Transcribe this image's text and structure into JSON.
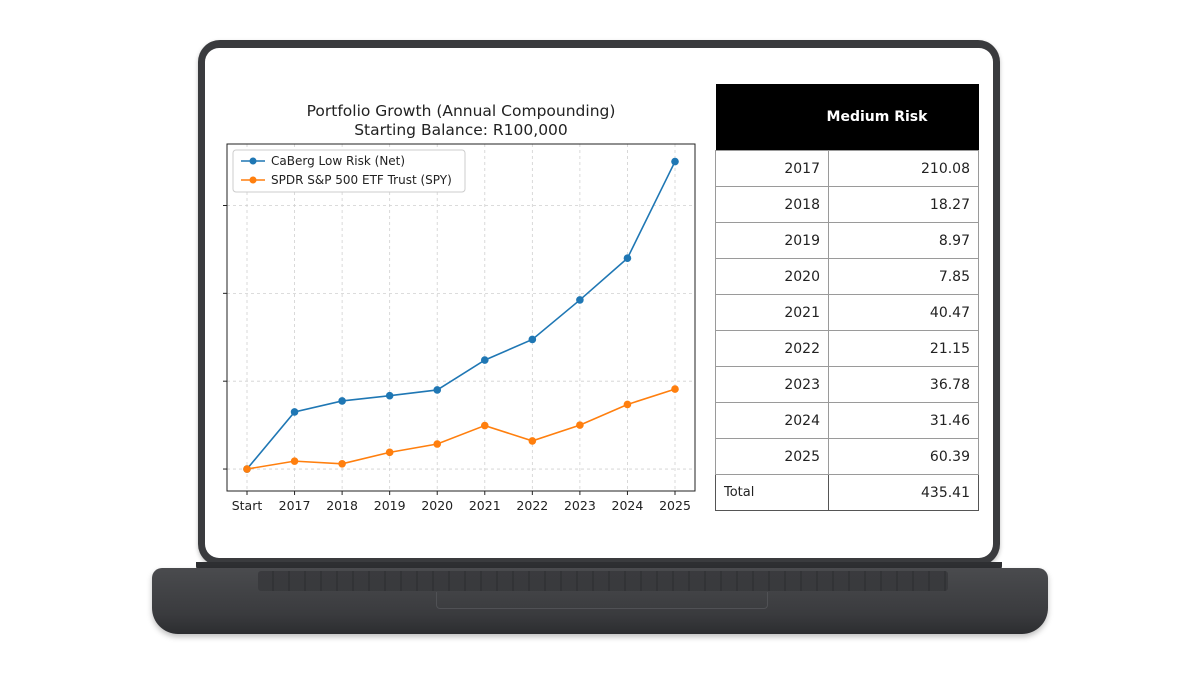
{
  "chart_data": {
    "type": "line",
    "title": "Portfolio Growth (Annual Compounding)",
    "subtitle": "Starting Balance: R100,000",
    "x": [
      "Start",
      "2017",
      "2018",
      "2019",
      "2020",
      "2021",
      "2022",
      "2023",
      "2024",
      "2025"
    ],
    "series": [
      {
        "name": "CaBerg Low Risk (Net)",
        "color": "#1f77b4",
        "values": [
          100000,
          113000,
          115500,
          116700,
          118000,
          124800,
          129500,
          138500,
          148000,
          170000
        ]
      },
      {
        "name": "SPDR S&P 500 ETF Trust (SPY)",
        "color": "#ff7f0e",
        "values": [
          100000,
          101800,
          101200,
          103800,
          105700,
          109900,
          106400,
          110000,
          114700,
          118200
        ]
      }
    ],
    "ylim": [
      95000,
      174000
    ],
    "grid": true,
    "legend": "top-left",
    "xlabel": "",
    "ylabel": ""
  },
  "table": {
    "header": "Medium Risk",
    "rows": [
      {
        "year": "2017",
        "value": "210.08"
      },
      {
        "year": "2018",
        "value": "18.27"
      },
      {
        "year": "2019",
        "value": "8.97"
      },
      {
        "year": "2020",
        "value": "7.85"
      },
      {
        "year": "2021",
        "value": "40.47"
      },
      {
        "year": "2022",
        "value": "21.15"
      },
      {
        "year": "2023",
        "value": "36.78"
      },
      {
        "year": "2024",
        "value": "31.46"
      },
      {
        "year": "2025",
        "value": "60.39"
      }
    ],
    "total_label": "Total",
    "total_value": "435.41"
  }
}
